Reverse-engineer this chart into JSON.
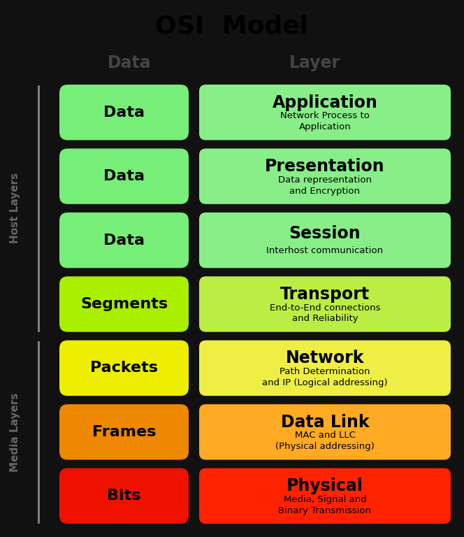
{
  "title": "OSI  Model",
  "col_headers": [
    "Data",
    "Layer"
  ],
  "layers": [
    {
      "left_label": "Data",
      "right_title": "Application",
      "right_sub": "Network Process to\nApplication",
      "color": "#77ee77",
      "right_color": "#88ee88"
    },
    {
      "left_label": "Data",
      "right_title": "Presentation",
      "right_sub": "Data representation\nand Encryption",
      "color": "#77ee77",
      "right_color": "#88ee88"
    },
    {
      "left_label": "Data",
      "right_title": "Session",
      "right_sub": "Interhost communication",
      "color": "#77ee77",
      "right_color": "#88ee88"
    },
    {
      "left_label": "Segments",
      "right_title": "Transport",
      "right_sub": "End-to-End connections\nand Reliability",
      "color": "#aaee00",
      "right_color": "#bbee44"
    },
    {
      "left_label": "Packets",
      "right_title": "Network",
      "right_sub": "Path Determination\nand IP (Logical addressing)",
      "color": "#eeee00",
      "right_color": "#eeee44"
    },
    {
      "left_label": "Frames",
      "right_title": "Data Link",
      "right_sub": "MAC and LLC\n(Physical addressing)",
      "color": "#ee8800",
      "right_color": "#ffaa22"
    },
    {
      "left_label": "Bits",
      "right_title": "Physical",
      "right_sub": "Media, Signal and\nBinary Transmission",
      "color": "#ee1100",
      "right_color": "#ff2200"
    }
  ],
  "host_layers_label": "Host Layers",
  "media_layers_label": "Media Layers",
  "bg_color": "#111111",
  "text_color": "#000000",
  "header_color": "#444444"
}
